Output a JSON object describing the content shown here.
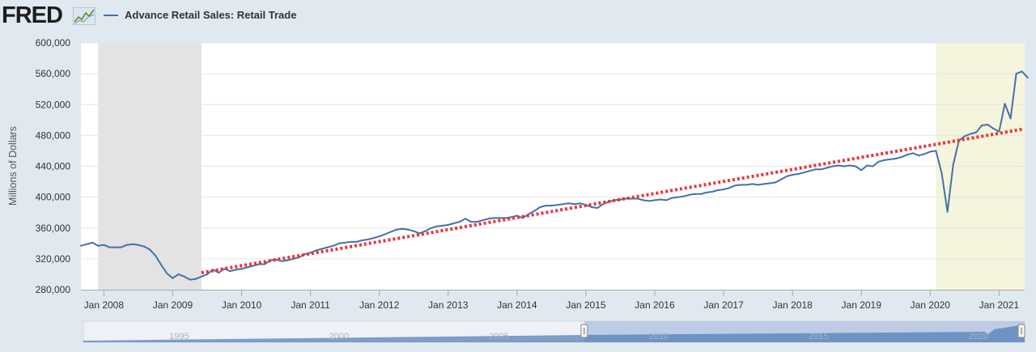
{
  "header": {
    "logo_text": "FRED",
    "series_title": "Advance Retail Sales: Retail Trade"
  },
  "colors": {
    "series": "#4572a7",
    "trend": "#e8363a",
    "recession": "#e3e3e3",
    "highlight": "#f5f4dc",
    "page_bg": "#e1e9f0"
  },
  "chart_data": {
    "type": "line",
    "ylabel": "Millions of Dollars",
    "ylim": [
      280000,
      600000
    ],
    "yticks": [
      280000,
      320000,
      360000,
      400000,
      440000,
      480000,
      520000,
      560000,
      600000
    ],
    "ytick_labels": [
      "280,000",
      "320,000",
      "360,000",
      "400,000",
      "440,000",
      "480,000",
      "520,000",
      "560,000",
      "600,000"
    ],
    "xlim": [
      "2007-09-01",
      "2021-05-15"
    ],
    "xticks": [
      "Jan 2008",
      "Jan 2009",
      "Jan 2010",
      "Jan 2011",
      "Jan 2012",
      "Jan 2013",
      "Jan 2014",
      "Jan 2015",
      "Jan 2016",
      "Jan 2017",
      "Jan 2018",
      "Jan 2019",
      "Jan 2020",
      "Jan 2021"
    ],
    "shaded_regions": [
      {
        "start": "2007-12-01",
        "end": "2009-06-01",
        "kind": "recession"
      },
      {
        "start": "2020-02-01",
        "end": "2021-05-15",
        "kind": "highlight"
      }
    ],
    "trend_line": {
      "start": [
        "2009-06",
        302000
      ],
      "end": [
        "2021-05",
        488000
      ]
    },
    "series": [
      {
        "name": "Advance Retail Sales: Retail Trade",
        "points": [
          [
            "2007-09",
            337000
          ],
          [
            "2007-10",
            339000
          ],
          [
            "2007-11",
            341000
          ],
          [
            "2007-12",
            337000
          ],
          [
            "2008-01",
            338000
          ],
          [
            "2008-02",
            335000
          ],
          [
            "2008-03",
            335000
          ],
          [
            "2008-04",
            335000
          ],
          [
            "2008-05",
            338000
          ],
          [
            "2008-06",
            339000
          ],
          [
            "2008-07",
            338000
          ],
          [
            "2008-08",
            336000
          ],
          [
            "2008-09",
            332000
          ],
          [
            "2008-10",
            324000
          ],
          [
            "2008-11",
            312000
          ],
          [
            "2008-12",
            301000
          ],
          [
            "2009-01",
            295000
          ],
          [
            "2009-02",
            300000
          ],
          [
            "2009-03",
            297000
          ],
          [
            "2009-04",
            293000
          ],
          [
            "2009-05",
            294000
          ],
          [
            "2009-06",
            297000
          ],
          [
            "2009-07",
            300000
          ],
          [
            "2009-08",
            306000
          ],
          [
            "2009-09",
            302000
          ],
          [
            "2009-10",
            307000
          ],
          [
            "2009-11",
            304000
          ],
          [
            "2009-12",
            306000
          ],
          [
            "2010-01",
            307000
          ],
          [
            "2010-02",
            309000
          ],
          [
            "2010-03",
            311000
          ],
          [
            "2010-04",
            313000
          ],
          [
            "2010-05",
            313000
          ],
          [
            "2010-06",
            318000
          ],
          [
            "2010-07",
            319000
          ],
          [
            "2010-08",
            317000
          ],
          [
            "2010-09",
            318000
          ],
          [
            "2010-10",
            320000
          ],
          [
            "2010-11",
            322000
          ],
          [
            "2010-12",
            326000
          ],
          [
            "2011-01",
            328000
          ],
          [
            "2011-02",
            331000
          ],
          [
            "2011-03",
            333000
          ],
          [
            "2011-04",
            335000
          ],
          [
            "2011-05",
            337000
          ],
          [
            "2011-06",
            340000
          ],
          [
            "2011-07",
            341000
          ],
          [
            "2011-08",
            342000
          ],
          [
            "2011-09",
            342000
          ],
          [
            "2011-10",
            344000
          ],
          [
            "2011-11",
            345000
          ],
          [
            "2011-12",
            347000
          ],
          [
            "2012-01",
            349000
          ],
          [
            "2012-02",
            352000
          ],
          [
            "2012-03",
            355000
          ],
          [
            "2012-04",
            358000
          ],
          [
            "2012-05",
            359000
          ],
          [
            "2012-06",
            358000
          ],
          [
            "2012-07",
            356000
          ],
          [
            "2012-08",
            353000
          ],
          [
            "2012-09",
            356000
          ],
          [
            "2012-10",
            360000
          ],
          [
            "2012-11",
            362000
          ],
          [
            "2012-12",
            363000
          ],
          [
            "2013-01",
            364000
          ],
          [
            "2013-02",
            366000
          ],
          [
            "2013-03",
            368000
          ],
          [
            "2013-04",
            372000
          ],
          [
            "2013-05",
            368000
          ],
          [
            "2013-06",
            368000
          ],
          [
            "2013-07",
            370000
          ],
          [
            "2013-08",
            372000
          ],
          [
            "2013-09",
            373000
          ],
          [
            "2013-10",
            373000
          ],
          [
            "2013-11",
            373000
          ],
          [
            "2013-12",
            374000
          ],
          [
            "2014-01",
            376000
          ],
          [
            "2014-02",
            373000
          ],
          [
            "2014-03",
            378000
          ],
          [
            "2014-04",
            382000
          ],
          [
            "2014-05",
            387000
          ],
          [
            "2014-06",
            389000
          ],
          [
            "2014-07",
            389000
          ],
          [
            "2014-08",
            390000
          ],
          [
            "2014-09",
            391000
          ],
          [
            "2014-10",
            392000
          ],
          [
            "2014-11",
            391000
          ],
          [
            "2014-12",
            392000
          ],
          [
            "2015-01",
            390000
          ],
          [
            "2015-02",
            387000
          ],
          [
            "2015-03",
            386000
          ],
          [
            "2015-04",
            391000
          ],
          [
            "2015-05",
            394000
          ],
          [
            "2015-06",
            396000
          ],
          [
            "2015-07",
            397000
          ],
          [
            "2015-08",
            398000
          ],
          [
            "2015-09",
            398000
          ],
          [
            "2015-10",
            398000
          ],
          [
            "2015-11",
            396000
          ],
          [
            "2015-12",
            395000
          ],
          [
            "2016-01",
            396000
          ],
          [
            "2016-02",
            397000
          ],
          [
            "2016-03",
            396000
          ],
          [
            "2016-04",
            399000
          ],
          [
            "2016-05",
            400000
          ],
          [
            "2016-06",
            401000
          ],
          [
            "2016-07",
            403000
          ],
          [
            "2016-08",
            404000
          ],
          [
            "2016-09",
            404000
          ],
          [
            "2016-10",
            406000
          ],
          [
            "2016-11",
            407000
          ],
          [
            "2016-12",
            409000
          ],
          [
            "2017-01",
            410000
          ],
          [
            "2017-02",
            412000
          ],
          [
            "2017-03",
            415000
          ],
          [
            "2017-04",
            416000
          ],
          [
            "2017-05",
            416000
          ],
          [
            "2017-06",
            417000
          ],
          [
            "2017-07",
            416000
          ],
          [
            "2017-08",
            417000
          ],
          [
            "2017-09",
            418000
          ],
          [
            "2017-10",
            419000
          ],
          [
            "2017-11",
            423000
          ],
          [
            "2017-12",
            427000
          ],
          [
            "2018-01",
            429000
          ],
          [
            "2018-02",
            430000
          ],
          [
            "2018-03",
            432000
          ],
          [
            "2018-04",
            434000
          ],
          [
            "2018-05",
            436000
          ],
          [
            "2018-06",
            436000
          ],
          [
            "2018-07",
            438000
          ],
          [
            "2018-08",
            440000
          ],
          [
            "2018-09",
            441000
          ],
          [
            "2018-10",
            440000
          ],
          [
            "2018-11",
            441000
          ],
          [
            "2018-12",
            440000
          ],
          [
            "2019-01",
            435000
          ],
          [
            "2019-02",
            441000
          ],
          [
            "2019-03",
            440000
          ],
          [
            "2019-04",
            446000
          ],
          [
            "2019-05",
            448000
          ],
          [
            "2019-06",
            449000
          ],
          [
            "2019-07",
            450000
          ],
          [
            "2019-08",
            452000
          ],
          [
            "2019-09",
            455000
          ],
          [
            "2019-10",
            457000
          ],
          [
            "2019-11",
            454000
          ],
          [
            "2019-12",
            456000
          ],
          [
            "2020-01",
            459000
          ],
          [
            "2020-02",
            460000
          ],
          [
            "2020-03",
            431000
          ],
          [
            "2020-04",
            381000
          ],
          [
            "2020-05",
            442000
          ],
          [
            "2020-06",
            473000
          ],
          [
            "2020-07",
            479000
          ],
          [
            "2020-08",
            482000
          ],
          [
            "2020-09",
            484000
          ],
          [
            "2020-10",
            493000
          ],
          [
            "2020-11",
            494000
          ],
          [
            "2020-12",
            489000
          ],
          [
            "2021-01",
            485000
          ],
          [
            "2021-02",
            521000
          ],
          [
            "2021-03",
            502000
          ],
          [
            "2021-04",
            560000
          ],
          [
            "2021-05",
            563000
          ],
          [
            "2021-06",
            555000
          ]
        ]
      }
    ]
  },
  "navigator": {
    "labels": [
      "1995",
      "2000",
      "2005",
      "2010",
      "2015",
      "2020"
    ]
  }
}
